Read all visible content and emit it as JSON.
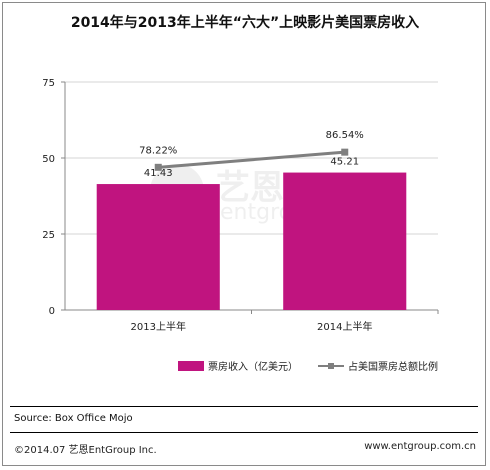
{
  "title": "2014年与2013年上半年“六大”上映影片美国票房收入",
  "chart_data": {
    "type": "bar",
    "categories": [
      "2013上半年",
      "2014上半年"
    ],
    "series": [
      {
        "name": "票房收入（亿美元）",
        "type": "bar",
        "values": [
          41.43,
          45.21
        ],
        "labels": [
          "41.43",
          "45.21"
        ],
        "color": "#c0147f"
      },
      {
        "name": "占美国票房总额比例",
        "type": "line",
        "values": [
          78.22,
          86.54
        ],
        "labels": [
          "78.22%",
          "86.54%"
        ],
        "color": "#7f7f7f"
      }
    ],
    "ylim": [
      0,
      75
    ],
    "yticks": [
      "0",
      "25",
      "50",
      "75"
    ],
    "grid": true,
    "legend": "bottom"
  },
  "source": "Source: Box Office Mojo",
  "footer": {
    "left": "©2014.07  艺恩EntGroup Inc.",
    "right": "www.entgroup.com.cn"
  },
  "watermark": {
    "cn": "艺恩",
    "en": "entgroup"
  }
}
